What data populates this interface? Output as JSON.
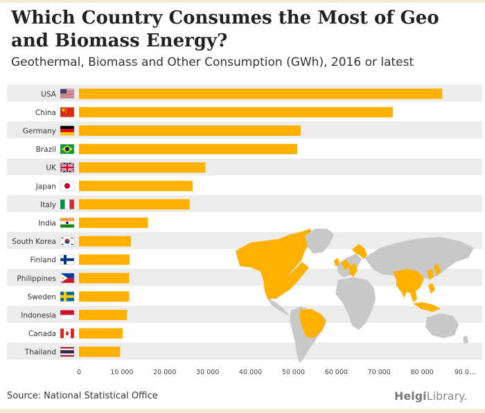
{
  "header": {
    "title": "Which Country Consumes the Most of Geo and Biomass Energy?",
    "subtitle": "Geothermal, Biomass and Other Consumption (GWh), 2016 or latest"
  },
  "footer": {
    "source": "Source: National Statistical Office",
    "brand_part1": "Helgi",
    "brand_part2": "Library."
  },
  "colors": {
    "bar": "#ffb000",
    "stripe": "#ececec",
    "land": "#c8c8c8",
    "highlight": "#ffb000"
  },
  "chart_data": {
    "type": "bar",
    "orientation": "horizontal",
    "title": "Which Country Consumes the Most of Geo and Biomass Energy?",
    "subtitle": "Geothermal, Biomass and Other Consumption (GWh), 2016 or latest",
    "categories": [
      "USA",
      "China",
      "Germany",
      "Brazil",
      "UK",
      "Japan",
      "Italy",
      "India",
      "South Korea",
      "Finland",
      "Philippines",
      "Sweden",
      "Indonesia",
      "Canada",
      "Thailand"
    ],
    "values": [
      84700,
      73200,
      51700,
      50900,
      29500,
      26500,
      25800,
      16100,
      12100,
      11800,
      11700,
      11700,
      11200,
      10200,
      9600
    ],
    "xlim": [
      0,
      90000
    ],
    "xticks": [
      0,
      10000,
      20000,
      30000,
      40000,
      50000,
      60000,
      70000,
      80000,
      90000
    ],
    "xtick_labels": [
      "0",
      "10 000",
      "20 000",
      "30 000",
      "40 000",
      "50 000",
      "60 000",
      "70 000",
      "80 000",
      "90 0..."
    ],
    "flags": [
      "flag-usa-icon",
      "flag-china-icon",
      "flag-germany-icon",
      "flag-brazil-icon",
      "flag-uk-icon",
      "flag-japan-icon",
      "flag-italy-icon",
      "flag-india-icon",
      "flag-south-korea-icon",
      "flag-finland-icon",
      "flag-philippines-icon",
      "flag-sweden-icon",
      "flag-indonesia-icon",
      "flag-canada-icon",
      "flag-thailand-icon"
    ],
    "xlabel": "",
    "ylabel": ""
  }
}
